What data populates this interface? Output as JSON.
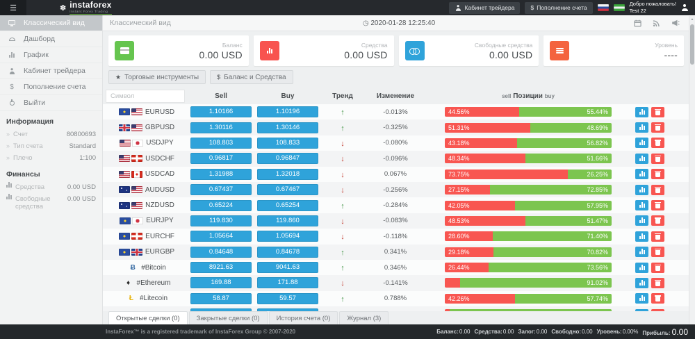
{
  "topbar": {
    "brand": "instaforex",
    "brand_tagline": "Instant Forex Trading",
    "trader_cabinet_label": "Кабинет трейдера",
    "deposit_label": "Пополнение счета",
    "deposit_icon_char": "$",
    "welcome_line1": "Добро пожаловать!",
    "welcome_line2": "Test 22"
  },
  "sidebar": {
    "items": [
      {
        "label": "Классический вид"
      },
      {
        "label": "Дашборд"
      },
      {
        "label": "График"
      },
      {
        "label": "Кабинет трейдера"
      },
      {
        "label": "Пополнение счета"
      },
      {
        "label": "Выйти"
      }
    ],
    "info_header": "Информация",
    "info_rows": [
      {
        "label": "Счет",
        "value": "80800693"
      },
      {
        "label": "Тип счета",
        "value": "Standard"
      },
      {
        "label": "Плечо",
        "value": "1:100"
      }
    ],
    "finance_header": "Финансы",
    "finance_rows": [
      {
        "label": "Средства",
        "value": "0.00 USD"
      },
      {
        "label": "Свободные средства",
        "value": "0.00 USD"
      }
    ]
  },
  "main": {
    "title": "Классический вид",
    "timestamp": "2020-01-28 12:25:40",
    "cards": [
      {
        "label": "Баланс",
        "value": "0.00 USD",
        "icon": "credit-card-icon",
        "color": "#66c54f"
      },
      {
        "label": "Средства",
        "value": "0.00 USD",
        "icon": "bar-chart-icon",
        "color": "#f8534f"
      },
      {
        "label": "Свободные средства",
        "value": "0.00 USD",
        "icon": "coins-icon",
        "color": "#2fa3da"
      },
      {
        "label": "Уровень",
        "value": "----",
        "icon": "list-icon",
        "color": "#f4633e"
      }
    ],
    "toolbar": [
      {
        "label": "Торговые инструменты",
        "icon_char": "★"
      },
      {
        "label": "Баланс и Средства",
        "icon_char": "$"
      }
    ]
  },
  "table": {
    "symbol_filter_placeholder": "Символ",
    "headers": {
      "sell": "Sell",
      "buy": "Buy",
      "trend": "Тренд",
      "change": "Изменение",
      "positions_sell": "sell",
      "positions_mid": "Позиции",
      "positions_buy": "buy"
    },
    "rows": [
      {
        "symbol": "EURUSD",
        "icons": [
          "flag-eu",
          "flag-us"
        ],
        "sell": "1.10166",
        "buy": "1.10196",
        "trend": "up",
        "change": "-0.013%",
        "sell_pct": 44.56,
        "buy_pct": 55.44,
        "sell_label": "44.56%",
        "buy_label": "55.44%"
      },
      {
        "symbol": "GBPUSD",
        "icons": [
          "flag-gb",
          "flag-us"
        ],
        "sell": "1.30116",
        "buy": "1.30146",
        "trend": "up",
        "change": "-0.325%",
        "sell_pct": 51.31,
        "buy_pct": 48.69,
        "sell_label": "51.31%",
        "buy_label": "48.69%"
      },
      {
        "symbol": "USDJPY",
        "icons": [
          "flag-us",
          "flag-jp"
        ],
        "sell": "108.803",
        "buy": "108.833",
        "trend": "down",
        "change": "-0.080%",
        "sell_pct": 43.18,
        "buy_pct": 56.82,
        "sell_label": "43.18%",
        "buy_label": "56.82%"
      },
      {
        "symbol": "USDCHF",
        "icons": [
          "flag-us",
          "flag-ch"
        ],
        "sell": "0.96817",
        "buy": "0.96847",
        "trend": "down",
        "change": "-0.096%",
        "sell_pct": 48.34,
        "buy_pct": 51.66,
        "sell_label": "48.34%",
        "buy_label": "51.66%"
      },
      {
        "symbol": "USDCAD",
        "icons": [
          "flag-us",
          "flag-ca"
        ],
        "sell": "1.31988",
        "buy": "1.32018",
        "trend": "down",
        "change": "0.067%",
        "sell_pct": 73.75,
        "buy_pct": 26.25,
        "sell_label": "73.75%",
        "buy_label": "26.25%"
      },
      {
        "symbol": "AUDUSD",
        "icons": [
          "flag-au",
          "flag-us"
        ],
        "sell": "0.67437",
        "buy": "0.67467",
        "trend": "down",
        "change": "-0.256%",
        "sell_pct": 27.15,
        "buy_pct": 72.85,
        "sell_label": "27.15%",
        "buy_label": "72.85%"
      },
      {
        "symbol": "NZDUSD",
        "icons": [
          "flag-nz",
          "flag-us"
        ],
        "sell": "0.65224",
        "buy": "0.65254",
        "trend": "up",
        "change": "-0.284%",
        "sell_pct": 42.05,
        "buy_pct": 57.95,
        "sell_label": "42.05%",
        "buy_label": "57.95%"
      },
      {
        "symbol": "EURJPY",
        "icons": [
          "flag-eu",
          "flag-jp"
        ],
        "sell": "119.830",
        "buy": "119.860",
        "trend": "down",
        "change": "-0.083%",
        "sell_pct": 48.53,
        "buy_pct": 51.47,
        "sell_label": "48.53%",
        "buy_label": "51.47%"
      },
      {
        "symbol": "EURCHF",
        "icons": [
          "flag-eu",
          "flag-ch"
        ],
        "sell": "1.05664",
        "buy": "1.05694",
        "trend": "down",
        "change": "-0.118%",
        "sell_pct": 28.6,
        "buy_pct": 71.4,
        "sell_label": "28.60%",
        "buy_label": "71.40%"
      },
      {
        "symbol": "EURGBP",
        "icons": [
          "flag-eu",
          "flag-gb"
        ],
        "sell": "0.84648",
        "buy": "0.84678",
        "trend": "up",
        "change": "0.341%",
        "sell_pct": 29.18,
        "buy_pct": 70.82,
        "sell_label": "29.18%",
        "buy_label": "70.82%"
      },
      {
        "symbol": "#Bitcoin",
        "icons": [
          "crypto-btc"
        ],
        "sell": "8921.63",
        "buy": "9041.63",
        "trend": "up",
        "change": "0.346%",
        "sell_pct": 26.44,
        "buy_pct": 73.56,
        "sell_label": "26.44%",
        "buy_label": "73.56%"
      },
      {
        "symbol": "#Ethereum",
        "icons": [
          "crypto-eth"
        ],
        "sell": "169.88",
        "buy": "171.88",
        "trend": "down",
        "change": "-0.141%",
        "sell_pct": 8.98,
        "buy_pct": 91.02,
        "sell_label": "",
        "buy_label": "91.02%"
      },
      {
        "symbol": "#Litecoin",
        "icons": [
          "crypto-ltc"
        ],
        "sell": "58.87",
        "buy": "59.57",
        "trend": "up",
        "change": "0.788%",
        "sell_pct": 42.26,
        "buy_pct": 57.74,
        "sell_label": "42.26%",
        "buy_label": "57.74%"
      },
      {
        "symbol": "",
        "icons": [
          "crypto-generic"
        ],
        "sell": "",
        "buy": "",
        "trend": "",
        "change": "",
        "sell_pct": 3,
        "buy_pct": 97,
        "sell_label": "",
        "buy_label": ""
      }
    ]
  },
  "bottom_tabs": [
    {
      "label": "Открытые сделки (0)"
    },
    {
      "label": "Закрытые сделки (0)"
    },
    {
      "label": "История счета (0)"
    },
    {
      "label": "Журнал (3)"
    }
  ],
  "footer": {
    "copyright": "InstaForex™ is a registered trademark of InstaForex Group © 2007-2020",
    "stats": [
      {
        "label": "Баланс:",
        "value": "0.00"
      },
      {
        "label": "Средства:",
        "value": "0.00"
      },
      {
        "label": "Залог:",
        "value": "0.00"
      },
      {
        "label": "Свободно:",
        "value": "0.00"
      },
      {
        "label": "Уровень:",
        "value": "0.00%"
      },
      {
        "label": "Прибыль:",
        "value": "0.00"
      }
    ]
  },
  "colors": {
    "accent_blue": "#2fa3da",
    "sell_red": "#f8534f",
    "buy_green": "#7cc54f",
    "trend_up": "#3d9140",
    "trend_down": "#c0392b"
  }
}
